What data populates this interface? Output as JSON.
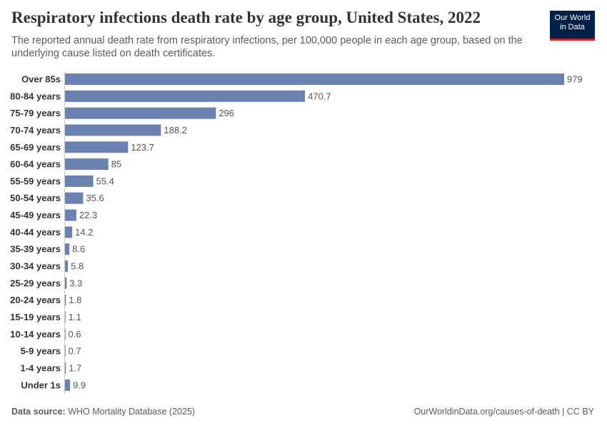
{
  "chart_data": {
    "type": "bar",
    "orientation": "horizontal",
    "title": "Respiratory infections death rate by age group, United States, 2022",
    "subtitle": "The reported annual death rate from respiratory infections, per 100,000 people in each age group, based on the underlying cause listed on death certificates.",
    "logo": [
      "Our World",
      "in Data"
    ],
    "source_label": "Data source:",
    "source": "WHO Mortality Database (2025)",
    "footer_right": "OurWorldinData.org/causes-of-death | CC BY",
    "categories": [
      "Over 85s",
      "80-84 years",
      "75-79 years",
      "70-74 years",
      "65-69 years",
      "60-64 years",
      "55-59 years",
      "50-54 years",
      "45-49 years",
      "40-44 years",
      "35-39 years",
      "30-34 years",
      "25-29 years",
      "20-24 years",
      "15-19 years",
      "10-14 years",
      "5-9 years",
      "1-4 years",
      "Under 1s"
    ],
    "values": [
      979,
      470.7,
      296,
      188.2,
      123.7,
      85,
      55.4,
      35.6,
      22.3,
      14.2,
      8.6,
      5.8,
      3.3,
      1.8,
      1.1,
      0.6,
      0.7,
      1.7,
      9.9
    ],
    "color": "#6b82b0",
    "xlim": [
      0,
      979
    ]
  }
}
